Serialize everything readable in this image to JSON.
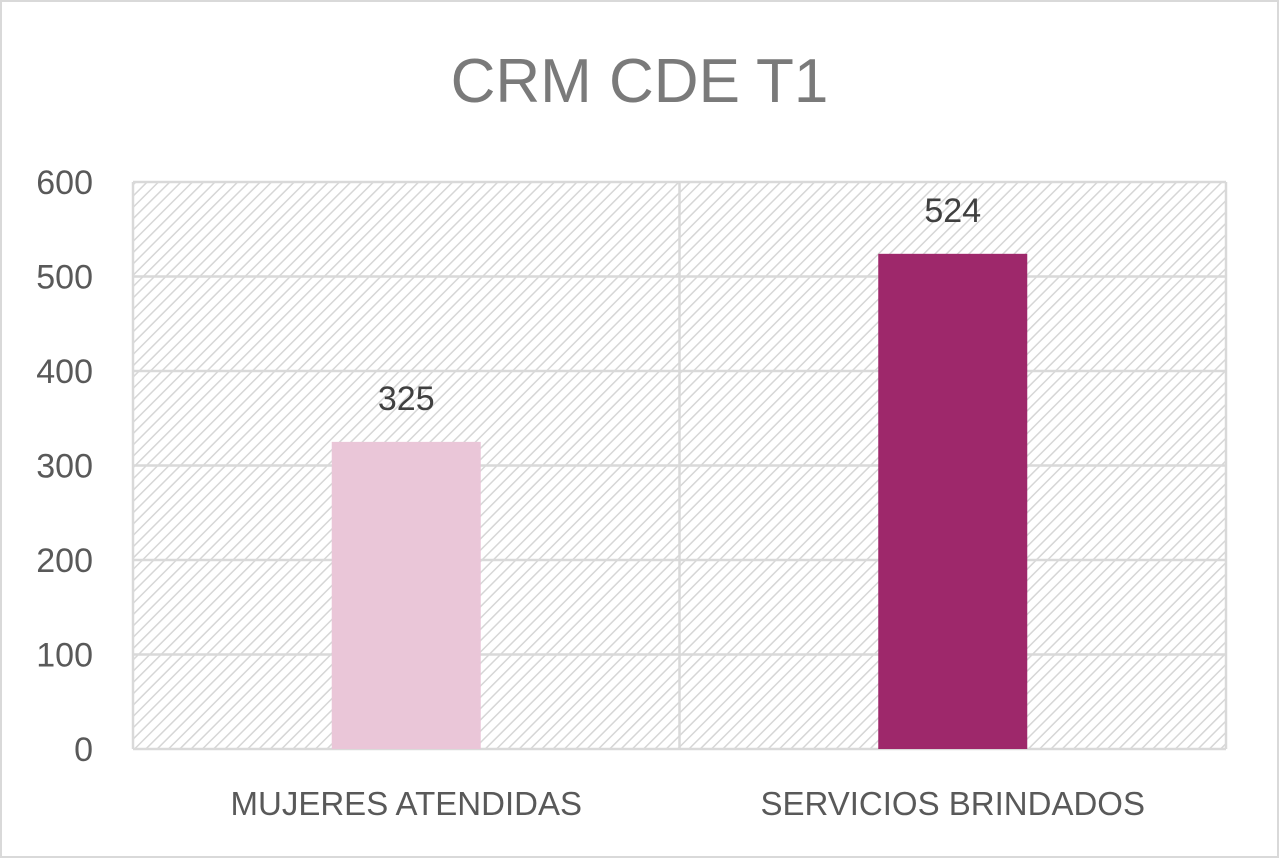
{
  "chart_data": {
    "type": "bar",
    "title": "CRM CDE T1",
    "categories": [
      "MUJERES ATENDIDAS",
      "SERVICIOS BRINDADOS"
    ],
    "values": [
      325,
      524
    ],
    "data_labels": [
      "325",
      "524"
    ],
    "bar_colors": [
      "#eac6d8",
      "#9e286b"
    ],
    "ylim": [
      0,
      600
    ],
    "yticks": [
      0,
      100,
      200,
      300,
      400,
      500,
      600
    ],
    "ytick_labels": [
      "0",
      "100",
      "200",
      "300",
      "400",
      "500",
      "600"
    ],
    "xlabel": "",
    "ylabel": "",
    "grid": true,
    "plot_background": "diagonal hatch"
  }
}
